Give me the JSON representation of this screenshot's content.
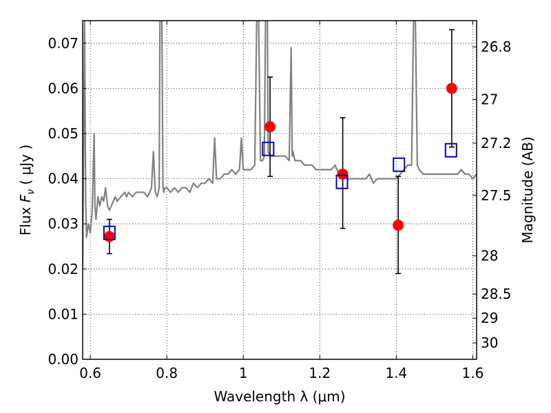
{
  "chart_data": {
    "type": "scatter",
    "xlabel": "Wavelength  λ (μm)",
    "ylabel": "Flux  F_ν  ( μJy )",
    "ylabel_parts": {
      "pre": "Flux  ",
      "sym": "F",
      "sub": "ν",
      "post": "  (  μJy )"
    },
    "y2label": "Magnitude (AB)",
    "xlim": [
      0.58,
      1.61
    ],
    "ylim": [
      0.0,
      0.075
    ],
    "grid": true,
    "x_ticks": [
      {
        "value": 0.6,
        "label": "0.6"
      },
      {
        "value": 0.8,
        "label": "0.8"
      },
      {
        "value": 1.0,
        "label": "1"
      },
      {
        "value": 1.2,
        "label": "1.2"
      },
      {
        "value": 1.4,
        "label": "1.4"
      },
      {
        "value": 1.6,
        "label": "1.6"
      }
    ],
    "y_ticks": [
      {
        "value": 0.0,
        "label": "0.00"
      },
      {
        "value": 0.01,
        "label": "0.01"
      },
      {
        "value": 0.02,
        "label": "0.02"
      },
      {
        "value": 0.03,
        "label": "0.03"
      },
      {
        "value": 0.04,
        "label": "0.04"
      },
      {
        "value": 0.05,
        "label": "0.05"
      },
      {
        "value": 0.06,
        "label": "0.06"
      },
      {
        "value": 0.07,
        "label": "0.07"
      }
    ],
    "y2_ticks": [
      {
        "value": 26.8,
        "label": "26.8"
      },
      {
        "value": 27.0,
        "label": "27"
      },
      {
        "value": 27.2,
        "label": "27.2"
      },
      {
        "value": 27.5,
        "label": "27.5"
      },
      {
        "value": 28.0,
        "label": "28"
      },
      {
        "value": 28.5,
        "label": "28.5"
      },
      {
        "value": 29.0,
        "label": "29"
      },
      {
        "value": 30.0,
        "label": "30"
      }
    ],
    "observed": {
      "color": "#ff0000",
      "points": [
        {
          "x": 0.65,
          "y": 0.0272,
          "yerr_low": 0.0234,
          "yerr_high": 0.031
        },
        {
          "x": 1.07,
          "y": 0.0515,
          "yerr_low": 0.0405,
          "yerr_high": 0.0625
        },
        {
          "x": 1.26,
          "y": 0.041,
          "yerr_low": 0.029,
          "yerr_high": 0.0535
        },
        {
          "x": 1.405,
          "y": 0.0297,
          "yerr_low": 0.019,
          "yerr_high": 0.0405
        },
        {
          "x": 1.545,
          "y": 0.06,
          "yerr_low": 0.047,
          "yerr_high": 0.073
        }
      ]
    },
    "model": {
      "color": "#0000cc",
      "points": [
        {
          "x": 0.65,
          "y": 0.028
        },
        {
          "x": 1.065,
          "y": 0.0466
        },
        {
          "x": 1.258,
          "y": 0.0393
        },
        {
          "x": 1.407,
          "y": 0.0431
        },
        {
          "x": 1.543,
          "y": 0.0463
        }
      ]
    },
    "spectrum": {
      "color": "#808080",
      "x": [
        0.58,
        0.585,
        0.588,
        0.59,
        0.595,
        0.6,
        0.605,
        0.61,
        0.612,
        0.615,
        0.62,
        0.625,
        0.63,
        0.635,
        0.64,
        0.645,
        0.65,
        0.655,
        0.66,
        0.665,
        0.67,
        0.68,
        0.69,
        0.695,
        0.7,
        0.71,
        0.72,
        0.73,
        0.74,
        0.75,
        0.76,
        0.765,
        0.77,
        0.775,
        0.78,
        0.782,
        0.785,
        0.787,
        0.79,
        0.792,
        0.795,
        0.8,
        0.81,
        0.82,
        0.83,
        0.84,
        0.85,
        0.86,
        0.87,
        0.88,
        0.89,
        0.9,
        0.91,
        0.92,
        0.925,
        0.93,
        0.94,
        0.95,
        0.96,
        0.97,
        0.98,
        0.99,
        0.995,
        1.0,
        1.005,
        1.01,
        1.02,
        1.03,
        1.035,
        1.04,
        1.045,
        1.05,
        1.055,
        1.058,
        1.06,
        1.063,
        1.065,
        1.07,
        1.08,
        1.09,
        1.1,
        1.11,
        1.12,
        1.125,
        1.128,
        1.13,
        1.135,
        1.14,
        1.15,
        1.16,
        1.17,
        1.18,
        1.19,
        1.2,
        1.21,
        1.22,
        1.23,
        1.24,
        1.25,
        1.26,
        1.27,
        1.28,
        1.29,
        1.3,
        1.31,
        1.32,
        1.33,
        1.34,
        1.35,
        1.36,
        1.37,
        1.38,
        1.39,
        1.4,
        1.41,
        1.42,
        1.43,
        1.44,
        1.445,
        1.448,
        1.45,
        1.455,
        1.46,
        1.47,
        1.48,
        1.49,
        1.5,
        1.51,
        1.52,
        1.53,
        1.54,
        1.55,
        1.56,
        1.57,
        1.58,
        1.59,
        1.6,
        1.61
      ],
      "y": [
        0.02,
        0.075,
        0.035,
        0.027,
        0.03,
        0.028,
        0.033,
        0.05,
        0.034,
        0.031,
        0.036,
        0.034,
        0.036,
        0.035,
        0.038,
        0.034,
        0.033,
        0.034,
        0.035,
        0.036,
        0.035,
        0.036,
        0.037,
        0.036,
        0.037,
        0.036,
        0.037,
        0.037,
        0.037,
        0.036,
        0.038,
        0.046,
        0.037,
        0.036,
        0.038,
        0.075,
        0.075,
        0.075,
        0.038,
        0.037,
        0.038,
        0.038,
        0.037,
        0.038,
        0.037,
        0.038,
        0.038,
        0.037,
        0.039,
        0.038,
        0.039,
        0.039,
        0.04,
        0.039,
        0.049,
        0.04,
        0.04,
        0.041,
        0.041,
        0.042,
        0.041,
        0.042,
        0.049,
        0.042,
        0.042,
        0.042,
        0.042,
        0.043,
        0.075,
        0.075,
        0.044,
        0.044,
        0.045,
        0.075,
        0.075,
        0.075,
        0.046,
        0.045,
        0.045,
        0.045,
        0.045,
        0.045,
        0.044,
        0.069,
        0.045,
        0.046,
        0.044,
        0.044,
        0.044,
        0.043,
        0.043,
        0.043,
        0.042,
        0.042,
        0.042,
        0.042,
        0.042,
        0.043,
        0.041,
        0.041,
        0.04,
        0.04,
        0.04,
        0.04,
        0.04,
        0.04,
        0.041,
        0.039,
        0.04,
        0.04,
        0.04,
        0.04,
        0.04,
        0.04,
        0.041,
        0.042,
        0.043,
        0.043,
        0.075,
        0.075,
        0.075,
        0.043,
        0.042,
        0.041,
        0.041,
        0.041,
        0.041,
        0.041,
        0.041,
        0.041,
        0.041,
        0.041,
        0.041,
        0.042,
        0.041,
        0.041,
        0.04,
        0.041
      ]
    }
  }
}
